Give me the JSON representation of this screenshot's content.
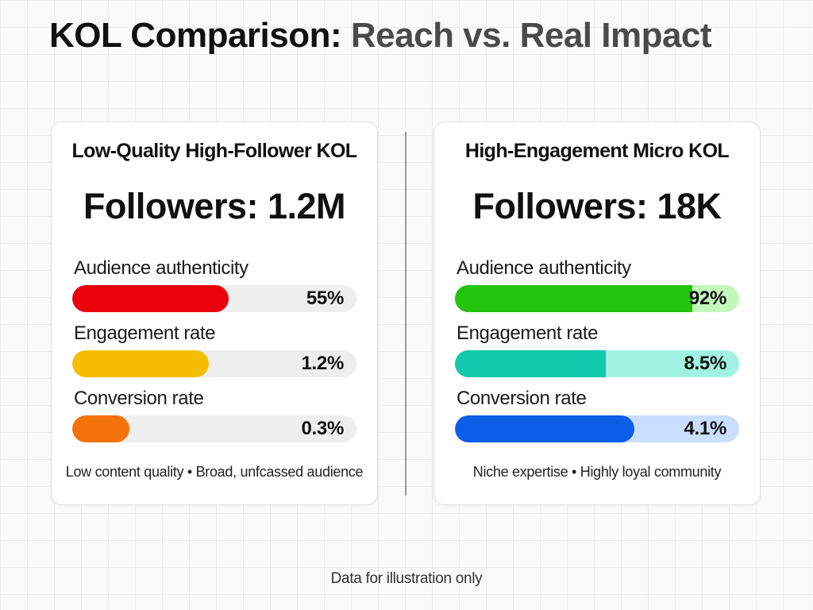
{
  "chart_data": {
    "type": "bar",
    "title": "KOL Comparison: Reach vs. Real Impact",
    "title_parts": [
      "KOL Comparison:",
      "Reach vs. Real Impact"
    ],
    "footnote": "Data for illustration only",
    "cards": [
      {
        "name": "Low-Quality High-Follower KOL",
        "followers_text": "Followers: 1.2M",
        "note": "Low content quality • Broad, unfcassed audience",
        "metrics": [
          {
            "label": "Audience authenticity",
            "value": 55,
            "display": "55%",
            "scale_max": 100,
            "color": "#e8000b",
            "track_color": "#eeeeee",
            "rounded": true
          },
          {
            "label": "Engagement rate",
            "value": 1.2,
            "display": "1.2%",
            "scale_max": 2.5,
            "color": "#f5be00",
            "track_color": "#eeeeee",
            "rounded": true
          },
          {
            "label": "Conversion rate",
            "value": 0.3,
            "display": "0.3%",
            "scale_max": 1.5,
            "color": "#f4720a",
            "track_color": "#eeeeee",
            "rounded": true
          }
        ]
      },
      {
        "name": "High-Engagement Micro KOL",
        "followers_text": "Followers: 18K",
        "note": "Niche expertise • Highly loyal community",
        "metrics": [
          {
            "label": "Audience authenticity",
            "value": 92,
            "display": "92%",
            "scale_max": 110,
            "color": "#22c40c",
            "track_color": "#c4f7bb",
            "rounded": false
          },
          {
            "label": "Engagement rate",
            "value": 8.5,
            "display": "8.5%",
            "scale_max": 16,
            "color": "#13c9ad",
            "track_color": "#a0f2e2",
            "rounded": false
          },
          {
            "label": "Conversion rate",
            "value": 4.1,
            "display": "4.1%",
            "scale_max": 6.5,
            "color": "#0c5ee8",
            "track_color": "#cadfff",
            "rounded": true
          }
        ]
      }
    ]
  }
}
